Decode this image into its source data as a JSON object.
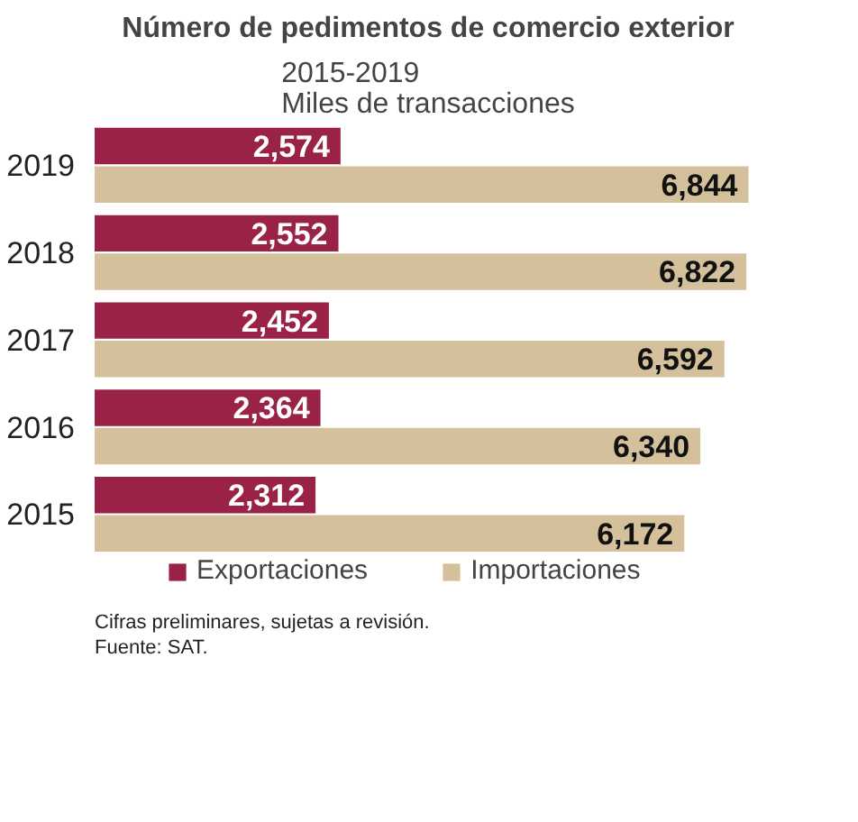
{
  "chart_data": {
    "type": "bar",
    "orientation": "horizontal",
    "title": "Número de pedimentos de comercio exterior",
    "subtitle": "2015-2019\nMiles de transacciones",
    "categories": [
      "2019",
      "2018",
      "2017",
      "2016",
      "2015"
    ],
    "series": [
      {
        "name": "Exportaciones",
        "color": "#9b2247",
        "values": [
          2574,
          2552,
          2452,
          2364,
          2312
        ],
        "value_labels": [
          "2,574",
          "2,552",
          "2,452",
          "2,364",
          "2,312"
        ]
      },
      {
        "name": "Importaciones",
        "color": "#d4c19c",
        "values": [
          6844,
          6822,
          6592,
          6340,
          6172
        ],
        "value_labels": [
          "6,844",
          "6,822",
          "6,592",
          "6,340",
          "6,172"
        ]
      }
    ],
    "legend": "bottom",
    "annotations": [
      "Cifras preliminares, sujetas a revisión.",
      "Fuente: SAT."
    ]
  }
}
